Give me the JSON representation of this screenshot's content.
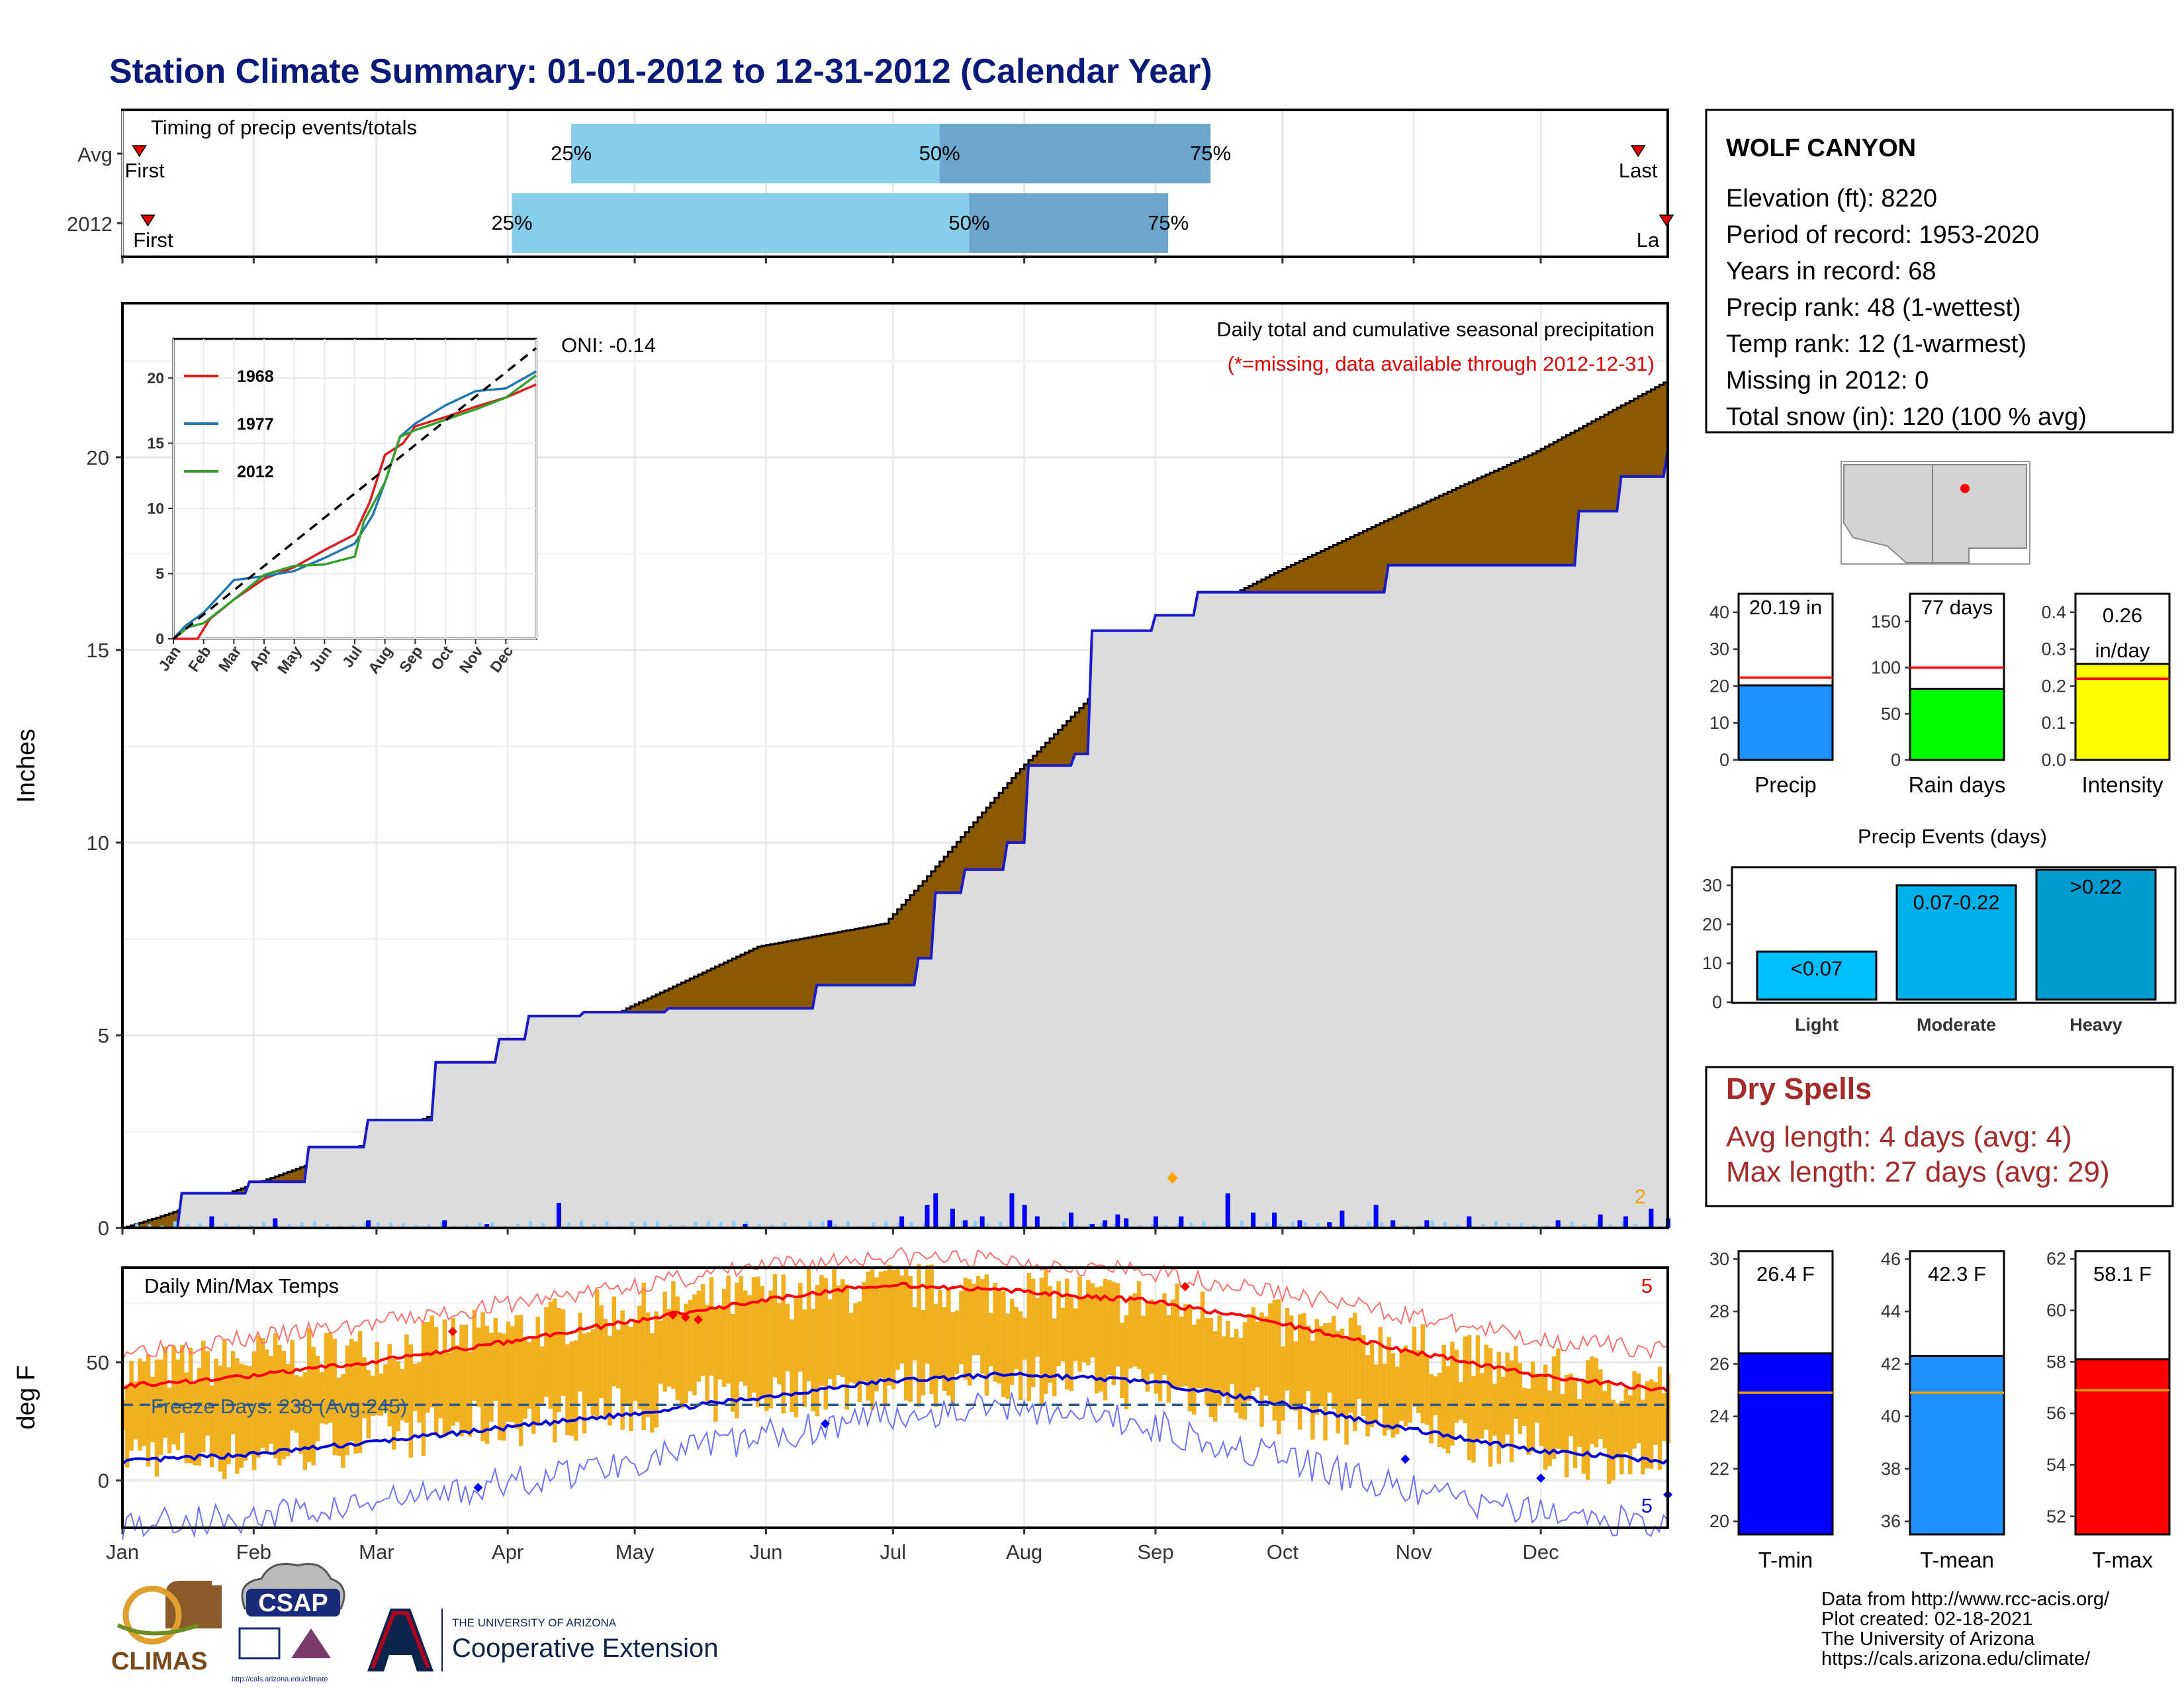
{
  "page_title": "Station Climate Summary: 01-01-2012 to 12-31-2012 (Calendar Year)",
  "months": [
    "Jan",
    "Feb",
    "Mar",
    "Apr",
    "May",
    "Jun",
    "Jul",
    "Aug",
    "Sep",
    "Oct",
    "Nov",
    "Dec"
  ],
  "timing_panel": {
    "title": "Timing of precip events/totals",
    "rows": [
      {
        "label": "Avg",
        "first_label": "First",
        "last_label": "Last",
        "p25_label": "25%",
        "p50_label": "50%",
        "p75_label": "75%",
        "first_doy": 5,
        "p25_doy": 107,
        "p50_doy": 194,
        "p75_doy": 258,
        "last_doy": 359
      },
      {
        "label": "2012",
        "first_label": "First",
        "last_label": "La",
        "p25_label": "25%",
        "p50_label": "50%",
        "p75_label": "75%",
        "first_doy": 7,
        "p25_doy": 93,
        "p50_doy": 201,
        "p75_doy": 248,
        "last_doy": 366
      }
    ]
  },
  "precip_panel": {
    "subtitle": "Daily total and cumulative seasonal precipitation",
    "missing_note": "(*=missing, data available through 2012-12-31)",
    "oni_label": "ONI: -0.14",
    "ylabel": "Inches",
    "yticks": [
      "0",
      "5",
      "10",
      "15",
      "20"
    ],
    "ylim": [
      0,
      24
    ],
    "corner_count": "2",
    "avg_cumulative": [
      [
        1,
        0
      ],
      [
        10,
        0.3
      ],
      [
        31,
        1.1
      ],
      [
        59,
        2.2
      ],
      [
        90,
        3.7
      ],
      [
        120,
        5.7
      ],
      [
        151,
        7.3
      ],
      [
        181,
        7.9
      ],
      [
        190,
        9.0
      ],
      [
        212,
        11.8
      ],
      [
        243,
        15.3
      ],
      [
        273,
        17.0
      ],
      [
        304,
        18.6
      ],
      [
        334,
        20.1
      ],
      [
        366,
        22.0
      ]
    ],
    "obs_cumulative": [
      [
        1,
        0
      ],
      [
        15,
        0.9
      ],
      [
        31,
        1.2
      ],
      [
        45,
        2.1
      ],
      [
        59,
        2.8
      ],
      [
        75,
        4.3
      ],
      [
        90,
        4.9
      ],
      [
        97,
        5.5
      ],
      [
        110,
        5.6
      ],
      [
        130,
        5.7
      ],
      [
        151,
        5.7
      ],
      [
        165,
        6.3
      ],
      [
        185,
        6.3
      ],
      [
        189,
        7.0
      ],
      [
        193,
        8.7
      ],
      [
        200,
        9.3
      ],
      [
        210,
        10.0
      ],
      [
        215,
        12.0
      ],
      [
        226,
        12.3
      ],
      [
        230,
        15.5
      ],
      [
        245,
        15.9
      ],
      [
        255,
        16.5
      ],
      [
        280,
        16.5
      ],
      [
        300,
        17.2
      ],
      [
        334,
        17.2
      ],
      [
        345,
        18.6
      ],
      [
        355,
        19.5
      ],
      [
        366,
        20.2
      ]
    ],
    "daily_bars": [
      [
        22,
        0.3
      ],
      [
        37,
        0.25
      ],
      [
        59,
        0.2
      ],
      [
        77,
        0.2
      ],
      [
        87,
        0.1
      ],
      [
        104,
        0.65
      ],
      [
        148,
        0.1
      ],
      [
        168,
        0.2
      ],
      [
        185,
        0.3
      ],
      [
        191,
        0.6
      ],
      [
        193,
        0.9
      ],
      [
        197,
        0.5
      ],
      [
        200,
        0.2
      ],
      [
        204,
        0.3
      ],
      [
        211,
        0.9
      ],
      [
        214,
        0.6
      ],
      [
        217,
        0.3
      ],
      [
        225,
        0.4
      ],
      [
        230,
        0.1
      ],
      [
        233,
        0.2
      ],
      [
        236,
        0.35
      ],
      [
        238,
        0.25
      ],
      [
        245,
        0.3
      ],
      [
        251,
        0.3
      ],
      [
        262,
        0.9
      ],
      [
        268,
        0.4
      ],
      [
        273,
        0.4
      ],
      [
        279,
        0.2
      ],
      [
        286,
        0.15
      ],
      [
        289,
        0.45
      ],
      [
        297,
        0.6
      ],
      [
        301,
        0.2
      ],
      [
        309,
        0.2
      ],
      [
        319,
        0.3
      ],
      [
        340,
        0.2
      ],
      [
        350,
        0.35
      ],
      [
        356,
        0.3
      ],
      [
        362,
        0.5
      ],
      [
        366,
        0.25
      ]
    ]
  },
  "inset": {
    "legend": [
      {
        "name": "1968",
        "color": "#e31a1c"
      },
      {
        "name": "1977",
        "color": "#1f78b4"
      },
      {
        "name": "2012",
        "color": "#33a02c"
      }
    ],
    "yticks": [
      "0",
      "5",
      "10",
      "15",
      "20"
    ],
    "month_labels": [
      "Jan",
      "Feb",
      "Mar",
      "Apr",
      "May",
      "Jun",
      "Jul",
      "Aug",
      "Sep",
      "Oct",
      "Nov",
      "Dec"
    ],
    "series": {
      "avg": [
        [
          0,
          0
        ],
        [
          12,
          22.3
        ]
      ],
      "1968": [
        [
          0,
          0
        ],
        [
          0.8,
          0
        ],
        [
          1.2,
          1.5
        ],
        [
          2,
          3.0
        ],
        [
          3,
          4.6
        ],
        [
          4,
          5.5
        ],
        [
          5,
          6.8
        ],
        [
          6,
          8.0
        ],
        [
          6.5,
          10.5
        ],
        [
          7,
          14.1
        ],
        [
          7.6,
          15.0
        ],
        [
          8,
          16.3
        ],
        [
          9,
          17.0
        ],
        [
          10,
          17.8
        ],
        [
          11,
          18.5
        ],
        [
          12,
          19.5
        ]
      ],
      "1977": [
        [
          0,
          0
        ],
        [
          0.4,
          1.0
        ],
        [
          1,
          2.0
        ],
        [
          2,
          4.5
        ],
        [
          3,
          4.8
        ],
        [
          4,
          5.2
        ],
        [
          5,
          6.2
        ],
        [
          6,
          7.3
        ],
        [
          6.6,
          9.5
        ],
        [
          7,
          12.0
        ],
        [
          7.5,
          15.5
        ],
        [
          8,
          16.5
        ],
        [
          9,
          17.9
        ],
        [
          10,
          19.0
        ],
        [
          11,
          19.2
        ],
        [
          12,
          20.5
        ]
      ],
      "2012": [
        [
          0,
          0
        ],
        [
          0.5,
          0.9
        ],
        [
          1,
          1.2
        ],
        [
          2,
          3.0
        ],
        [
          3,
          4.9
        ],
        [
          4,
          5.6
        ],
        [
          5,
          5.7
        ],
        [
          6,
          6.3
        ],
        [
          6.3,
          9.0
        ],
        [
          7,
          12.0
        ],
        [
          7.5,
          15.5
        ],
        [
          8,
          16.0
        ],
        [
          9,
          16.8
        ],
        [
          10,
          17.6
        ],
        [
          11,
          18.5
        ],
        [
          12,
          20.2
        ]
      ]
    }
  },
  "temp_panel": {
    "title": "Daily Min/Max Temps",
    "ylabel": "deg F",
    "yticks": [
      "0",
      "50"
    ],
    "ylim": [
      -20,
      90
    ],
    "freeze_label": "Freeze Days: 238 (Avg:245)",
    "freeze_line": 32,
    "count_high": "5",
    "count_low": "5",
    "avg_max": [
      [
        1,
        40
      ],
      [
        31,
        44
      ],
      [
        59,
        50
      ],
      [
        90,
        58
      ],
      [
        120,
        67
      ],
      [
        151,
        76
      ],
      [
        181,
        83
      ],
      [
        212,
        80
      ],
      [
        243,
        76
      ],
      [
        273,
        67
      ],
      [
        304,
        55
      ],
      [
        334,
        45
      ],
      [
        366,
        38
      ]
    ],
    "avg_min": [
      [
        1,
        8
      ],
      [
        31,
        11
      ],
      [
        59,
        16
      ],
      [
        90,
        22
      ],
      [
        120,
        28
      ],
      [
        151,
        35
      ],
      [
        181,
        42
      ],
      [
        212,
        45
      ],
      [
        243,
        42
      ],
      [
        273,
        33
      ],
      [
        304,
        22
      ],
      [
        334,
        13
      ],
      [
        366,
        8
      ]
    ],
    "rec_max": [
      [
        1,
        55
      ],
      [
        31,
        60
      ],
      [
        59,
        66
      ],
      [
        90,
        74
      ],
      [
        120,
        82
      ],
      [
        151,
        90
      ],
      [
        181,
        95
      ],
      [
        212,
        93
      ],
      [
        243,
        88
      ],
      [
        273,
        80
      ],
      [
        304,
        70
      ],
      [
        334,
        60
      ],
      [
        366,
        55
      ]
    ],
    "rec_min": [
      [
        1,
        -18
      ],
      [
        31,
        -16
      ],
      [
        59,
        -10
      ],
      [
        90,
        -2
      ],
      [
        120,
        8
      ],
      [
        151,
        18
      ],
      [
        181,
        28
      ],
      [
        212,
        32
      ],
      [
        243,
        24
      ],
      [
        273,
        10
      ],
      [
        304,
        -4
      ],
      [
        334,
        -14
      ],
      [
        366,
        -18
      ]
    ],
    "obs_max": [
      [
        1,
        45
      ],
      [
        31,
        52
      ],
      [
        59,
        55
      ],
      [
        90,
        63
      ],
      [
        120,
        72
      ],
      [
        151,
        78
      ],
      [
        181,
        82
      ],
      [
        212,
        80
      ],
      [
        243,
        76
      ],
      [
        273,
        66
      ],
      [
        304,
        57
      ],
      [
        334,
        46
      ],
      [
        366,
        40
      ]
    ],
    "obs_min": [
      [
        1,
        12
      ],
      [
        31,
        10
      ],
      [
        59,
        18
      ],
      [
        90,
        24
      ],
      [
        120,
        30
      ],
      [
        151,
        36
      ],
      [
        181,
        40
      ],
      [
        212,
        44
      ],
      [
        243,
        40
      ],
      [
        273,
        30
      ],
      [
        304,
        22
      ],
      [
        334,
        14
      ],
      [
        366,
        6
      ]
    ]
  },
  "station": {
    "name": "WOLF CANYON",
    "lines": [
      "Elevation (ft): 8220",
      "Period of record: 1953-2020",
      "Years in record: 68",
      "Precip rank: 48 (1-wettest)",
      "Temp rank: 12 (1-warmest)",
      "Missing in 2012: 0",
      "Total snow (in): 120 (100 % avg)"
    ]
  },
  "summary_bars": [
    {
      "label": "Precip",
      "value_label": "20.19 in",
      "value": 20.19,
      "avg": 22.3,
      "ymax": 45,
      "ticks": [
        "0",
        "10",
        "20",
        "30",
        "40"
      ],
      "color": "#1e90ff"
    },
    {
      "label": "Rain days",
      "value_label": "77 days",
      "value": 77,
      "avg": 100,
      "ymax": 180,
      "ticks": [
        "0",
        "50",
        "100",
        "150"
      ],
      "color": "#00ff00"
    },
    {
      "label": "Intensity",
      "value_label": "0.26",
      "value_unit": "in/day",
      "value": 0.26,
      "avg": 0.22,
      "ymax": 0.45,
      "ticks": [
        "0.0",
        "0.1",
        "0.2",
        "0.3",
        "0.4"
      ],
      "color": "#ffff00"
    }
  ],
  "precip_events": {
    "title": "Precip Events (days)",
    "yticks": [
      "0",
      "10",
      "20",
      "30"
    ],
    "ymax": 34,
    "bars": [
      {
        "category": "Light",
        "label": "<0.07",
        "value": 13,
        "color": "#00bfff"
      },
      {
        "category": "Moderate",
        "label": "0.07-0.22",
        "value": 30,
        "color": "#00b0e8"
      },
      {
        "category": "Heavy",
        "label": ">0.22",
        "value": 34,
        "color": "#009cd0"
      }
    ]
  },
  "dry_spells": {
    "title": "Dry Spells",
    "avg_line": "Avg length: 4 days (avg: 4)",
    "max_line": "Max length: 27 days (avg: 29)"
  },
  "temp_bars": [
    {
      "label": "T-min",
      "value_label": "26.4 F",
      "value": 26.4,
      "avg": 24.9,
      "ymin": 19.5,
      "ymax": 30.3,
      "ticks": [
        "20",
        "22",
        "24",
        "26",
        "28",
        "30"
      ],
      "tickvals": [
        20,
        22,
        24,
        26,
        28,
        30
      ],
      "color": "#0000ff"
    },
    {
      "label": "T-mean",
      "value_label": "42.3 F",
      "value": 42.3,
      "avg": 40.9,
      "ymin": 35.5,
      "ymax": 46.3,
      "ticks": [
        "36",
        "38",
        "40",
        "42",
        "44",
        "46"
      ],
      "tickvals": [
        36,
        38,
        40,
        42,
        44,
        46
      ],
      "color": "#1e90ff"
    },
    {
      "label": "T-max",
      "value_label": "58.1 F",
      "value": 58.1,
      "avg": 56.9,
      "ymin": 51.3,
      "ymax": 62.3,
      "ticks": [
        "52",
        "54",
        "56",
        "58",
        "60",
        "62"
      ],
      "tickvals": [
        52,
        54,
        56,
        58,
        60,
        62
      ],
      "color": "#ff0000"
    }
  ],
  "footer": {
    "lines": [
      "Data from http://www.rcc-acis.org/",
      "Plot created: 02-18-2021",
      "The University of Arizona",
      "https://cals.arizona.edu/climate/"
    ]
  },
  "logos": {
    "climas": "CLIMAS",
    "csap": "CSAP",
    "csap_url": "http://cals.arizona.edu/climate",
    "ua_top": "THE UNIVERSITY OF ARIZONA",
    "ua_main": "Cooperative Extension"
  }
}
